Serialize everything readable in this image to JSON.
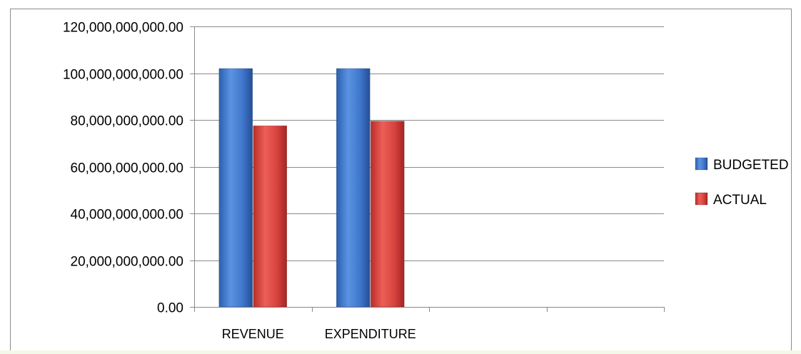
{
  "chart_data": {
    "type": "bar",
    "categories": [
      "REVENUE",
      "EXPENDITURE",
      "",
      ""
    ],
    "series": [
      {
        "name": "BUDGETED",
        "values": [
          102000000000,
          102000000000,
          null,
          null
        ]
      },
      {
        "name": "ACTUAL",
        "values": [
          77500000000,
          79500000000,
          null,
          null
        ]
      }
    ],
    "ylim": [
      0,
      120000000000
    ],
    "yticks": [
      0,
      20000000000,
      40000000000,
      60000000000,
      80000000000,
      100000000000,
      120000000000
    ],
    "ytick_labels": [
      "0.00",
      "20,000,000,000.00",
      "40,000,000,000.00",
      "60,000,000,000.00",
      "80,000,000,000.00",
      "100,000,000,000.00",
      "120,000,000,000.00"
    ],
    "grid": true,
    "legend_position": "right",
    "colors": {
      "BUDGETED": "#3f77cc",
      "ACTUAL": "#d8443f"
    }
  }
}
